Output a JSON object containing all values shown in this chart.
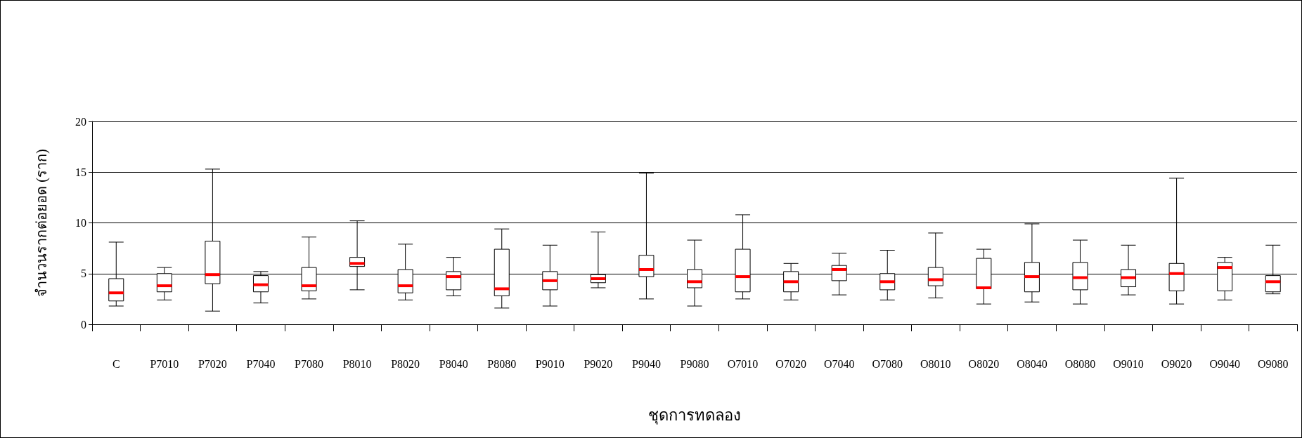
{
  "chart_data": {
    "type": "box",
    "xlabel": "ชุดการทดลอง",
    "ylabel": "จำนวนรากต่อยอด (ราก)",
    "categories": [
      "C",
      "P7010",
      "P7020",
      "P7040",
      "P7080",
      "P8010",
      "P8020",
      "P8040",
      "P8080",
      "P9010",
      "P9020",
      "P9040",
      "P9080",
      "O7010",
      "O7020",
      "O7040",
      "O7080",
      "O8010",
      "O8020",
      "O8040",
      "O8080",
      "O9010",
      "O9020",
      "O9040",
      "O9080"
    ],
    "boxes": [
      {
        "low": 1.8,
        "q1": 2.3,
        "median": 3.1,
        "q3": 4.5,
        "high": 8.1
      },
      {
        "low": 2.4,
        "q1": 3.2,
        "median": 3.8,
        "q3": 5.0,
        "high": 5.6
      },
      {
        "low": 1.3,
        "q1": 4.0,
        "median": 4.9,
        "q3": 8.2,
        "high": 15.3
      },
      {
        "low": 2.1,
        "q1": 3.2,
        "median": 3.9,
        "q3": 4.8,
        "high": 5.2
      },
      {
        "low": 2.5,
        "q1": 3.3,
        "median": 3.8,
        "q3": 5.6,
        "high": 8.6
      },
      {
        "low": 3.4,
        "q1": 5.7,
        "median": 6.0,
        "q3": 6.6,
        "high": 10.2
      },
      {
        "low": 2.4,
        "q1": 3.1,
        "median": 3.8,
        "q3": 5.4,
        "high": 7.9
      },
      {
        "low": 2.8,
        "q1": 3.4,
        "median": 4.7,
        "q3": 5.2,
        "high": 6.6
      },
      {
        "low": 1.6,
        "q1": 2.8,
        "median": 3.5,
        "q3": 7.4,
        "high": 9.4
      },
      {
        "low": 1.8,
        "q1": 3.4,
        "median": 4.3,
        "q3": 5.2,
        "high": 7.8
      },
      {
        "low": 3.6,
        "q1": 4.1,
        "median": 4.5,
        "q3": 4.9,
        "high": 9.1
      },
      {
        "low": 2.5,
        "q1": 4.7,
        "median": 5.4,
        "q3": 6.8,
        "high": 14.9
      },
      {
        "low": 1.8,
        "q1": 3.6,
        "median": 4.2,
        "q3": 5.4,
        "high": 8.3
      },
      {
        "low": 2.5,
        "q1": 3.2,
        "median": 4.7,
        "q3": 7.4,
        "high": 10.8
      },
      {
        "low": 2.4,
        "q1": 3.2,
        "median": 4.2,
        "q3": 5.2,
        "high": 6.0
      },
      {
        "low": 2.9,
        "q1": 4.3,
        "median": 5.4,
        "q3": 5.8,
        "high": 7.0
      },
      {
        "low": 2.4,
        "q1": 3.4,
        "median": 4.2,
        "q3": 5.0,
        "high": 7.3
      },
      {
        "low": 2.6,
        "q1": 3.8,
        "median": 4.4,
        "q3": 5.6,
        "high": 9.0
      },
      {
        "low": 2.0,
        "q1": 3.5,
        "median": 3.6,
        "q3": 6.5,
        "high": 7.4
      },
      {
        "low": 2.2,
        "q1": 3.2,
        "median": 4.7,
        "q3": 6.1,
        "high": 9.9
      },
      {
        "low": 2.0,
        "q1": 3.4,
        "median": 4.6,
        "q3": 6.1,
        "high": 8.3
      },
      {
        "low": 2.9,
        "q1": 3.7,
        "median": 4.6,
        "q3": 5.4,
        "high": 7.8
      },
      {
        "low": 2.0,
        "q1": 3.3,
        "median": 5.0,
        "q3": 6.0,
        "high": 14.4
      },
      {
        "low": 2.4,
        "q1": 3.3,
        "median": 5.6,
        "q3": 6.1,
        "high": 6.6
      },
      {
        "low": 3.0,
        "q1": 3.2,
        "median": 4.2,
        "q3": 4.8,
        "high": 7.8
      }
    ],
    "ylim": [
      0,
      20
    ],
    "yticks": [
      0,
      5,
      10,
      15,
      20
    ],
    "grid": "y"
  }
}
